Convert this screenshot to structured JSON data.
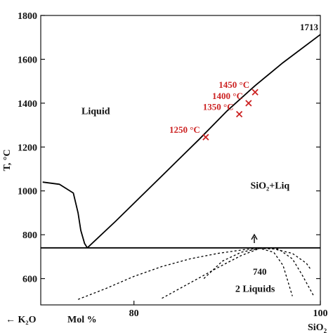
{
  "chart_data": {
    "type": "line",
    "title": "",
    "ylabel": "T, °C",
    "xlabel": "Mol %",
    "xlim": [
      70,
      100
    ],
    "ylim": [
      480,
      1800
    ],
    "x_ticks": [
      80,
      100
    ],
    "y_ticks": [
      600,
      800,
      1000,
      1200,
      1400,
      1600,
      1800
    ],
    "x_end_labels": {
      "left": "← K₂O",
      "right": "SiO"
    },
    "right_label_subscript": "2",
    "regions": [
      {
        "text": "Liquid",
        "x": 75.9,
        "y": 1350
      },
      {
        "text": "SiO₂+Liq",
        "x": 94.6,
        "y": 1010
      },
      {
        "text": "2 Liquids",
        "x": 93.0,
        "y": 540
      }
    ],
    "point_annotations": {
      "top": {
        "text": "1713",
        "x": 100,
        "y": 1713
      },
      "immiscibility": {
        "text": "740",
        "x": 93.5,
        "y": 740
      }
    },
    "colors": {
      "curve": "#000000",
      "marker": "#cc2222",
      "marker_label": "#cc2222"
    },
    "series": [
      {
        "style": "solid",
        "points": [
          [
            70.2,
            1040
          ],
          [
            72.0,
            1030
          ],
          [
            73.5,
            990
          ],
          [
            74.0,
            900
          ],
          [
            74.3,
            820
          ],
          [
            74.7,
            760
          ],
          [
            75.0,
            740
          ]
        ]
      },
      {
        "style": "solid",
        "points": [
          [
            75.0,
            740
          ],
          [
            78.0,
            860
          ],
          [
            81.0,
            985
          ],
          [
            84.0,
            1110
          ],
          [
            87.0,
            1235
          ],
          [
            90.0,
            1365
          ],
          [
            93.0,
            1480
          ],
          [
            96.0,
            1585
          ],
          [
            100.0,
            1713
          ]
        ]
      },
      {
        "style": "solid",
        "points": [
          [
            70.0,
            740
          ],
          [
            100.0,
            740
          ]
        ]
      },
      {
        "style": "dashed",
        "points": [
          [
            74.0,
            505
          ],
          [
            77.0,
            555
          ],
          [
            80.0,
            610
          ],
          [
            83.0,
            655
          ],
          [
            86.0,
            690
          ],
          [
            89.0,
            715
          ],
          [
            92.0,
            733
          ],
          [
            93.5,
            738
          ],
          [
            95.0,
            735
          ],
          [
            97.0,
            715
          ],
          [
            98.5,
            670
          ],
          [
            99.0,
            640
          ]
        ]
      },
      {
        "style": "dashed",
        "points": [
          [
            83.0,
            510
          ],
          [
            86.0,
            580
          ],
          [
            89.0,
            650
          ],
          [
            91.5,
            705
          ],
          [
            93.5,
            738
          ],
          [
            95.5,
            735
          ],
          [
            97.0,
            690
          ],
          [
            98.0,
            620
          ],
          [
            99.3,
            520
          ]
        ]
      },
      {
        "style": "dashed",
        "points": [
          [
            87.5,
            600
          ],
          [
            89.5,
            680
          ],
          [
            91.5,
            720
          ],
          [
            93.5,
            738
          ],
          [
            95.0,
            720
          ],
          [
            96.0,
            660
          ],
          [
            97.0,
            520
          ]
        ]
      }
    ],
    "markers": [
      {
        "label": "1250 °C",
        "x": 87.7,
        "y": 1245
      },
      {
        "label": "1350 °C",
        "x": 91.3,
        "y": 1350
      },
      {
        "label": "1400 °C",
        "x": 92.3,
        "y": 1400
      },
      {
        "label": "1450 °C",
        "x": 93.0,
        "y": 1450
      }
    ]
  }
}
